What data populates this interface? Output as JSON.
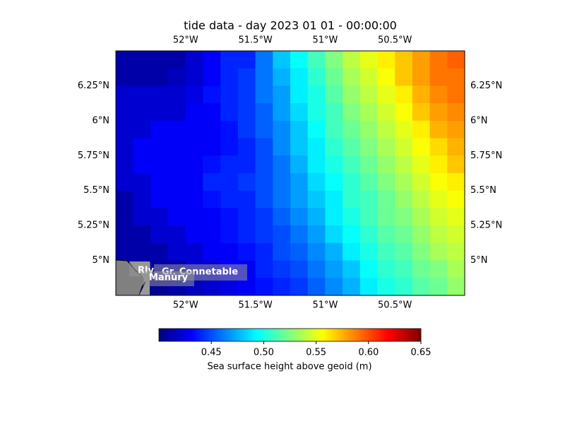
{
  "chart_data": {
    "type": "heatmap",
    "title": "tide data - day 2023 01 01 - 00:00:00",
    "xlim": [
      -52.5,
      -50.0
    ],
    "ylim": [
      4.75,
      6.5
    ],
    "xticks": [
      {
        "value": -52,
        "label": "52°W"
      },
      {
        "value": -51.5,
        "label": "51.5°W"
      },
      {
        "value": -51,
        "label": "51°W"
      },
      {
        "value": -50.5,
        "label": "50.5°W"
      }
    ],
    "yticks": [
      {
        "value": 5,
        "label": "5°N"
      },
      {
        "value": 5.25,
        "label": "5.25°N"
      },
      {
        "value": 5.5,
        "label": "5.5°N"
      },
      {
        "value": 5.75,
        "label": "5.75°N"
      },
      {
        "value": 6,
        "label": "6°N"
      },
      {
        "value": 6.25,
        "label": "6.25°N"
      }
    ],
    "colormap": "jet",
    "clim": [
      0.4,
      0.65
    ],
    "cticks": [
      {
        "value": 0.45,
        "label": "0.45"
      },
      {
        "value": 0.5,
        "label": "0.50"
      },
      {
        "value": 0.55,
        "label": "0.55"
      },
      {
        "value": 0.6,
        "label": "0.60"
      },
      {
        "value": 0.65,
        "label": "0.65"
      }
    ],
    "colorbar_label": "Sea surface height above geoid (m)",
    "annotations": [
      "Rly",
      "Gr. Connetable",
      "Manury"
    ],
    "values": [
      [
        0.41,
        0.41,
        0.41,
        0.41,
        0.42,
        0.43,
        0.44,
        0.44,
        0.46,
        0.48,
        0.495,
        0.51,
        0.525,
        0.54,
        0.55,
        0.56,
        0.57,
        0.58,
        0.59,
        0.595
      ],
      [
        0.41,
        0.41,
        0.41,
        0.415,
        0.42,
        0.43,
        0.44,
        0.445,
        0.46,
        0.475,
        0.49,
        0.505,
        0.52,
        0.535,
        0.545,
        0.555,
        0.57,
        0.58,
        0.59,
        0.59
      ],
      [
        0.42,
        0.42,
        0.42,
        0.42,
        0.425,
        0.435,
        0.44,
        0.445,
        0.46,
        0.47,
        0.49,
        0.5,
        0.515,
        0.53,
        0.54,
        0.55,
        0.56,
        0.575,
        0.585,
        0.59
      ],
      [
        0.42,
        0.42,
        0.42,
        0.42,
        0.43,
        0.43,
        0.44,
        0.445,
        0.455,
        0.47,
        0.485,
        0.5,
        0.51,
        0.525,
        0.535,
        0.545,
        0.555,
        0.57,
        0.58,
        0.585
      ],
      [
        0.42,
        0.42,
        0.43,
        0.43,
        0.43,
        0.43,
        0.435,
        0.445,
        0.455,
        0.465,
        0.48,
        0.495,
        0.51,
        0.52,
        0.53,
        0.54,
        0.55,
        0.56,
        0.575,
        0.58
      ],
      [
        0.42,
        0.43,
        0.43,
        0.43,
        0.43,
        0.43,
        0.435,
        0.44,
        0.45,
        0.465,
        0.48,
        0.49,
        0.505,
        0.515,
        0.525,
        0.535,
        0.545,
        0.555,
        0.565,
        0.575
      ],
      [
        0.42,
        0.43,
        0.43,
        0.43,
        0.43,
        0.435,
        0.44,
        0.44,
        0.45,
        0.46,
        0.475,
        0.49,
        0.5,
        0.51,
        0.52,
        0.53,
        0.54,
        0.55,
        0.56,
        0.57
      ],
      [
        0.42,
        0.42,
        0.43,
        0.43,
        0.43,
        0.44,
        0.44,
        0.445,
        0.45,
        0.46,
        0.47,
        0.485,
        0.495,
        0.505,
        0.515,
        0.525,
        0.535,
        0.545,
        0.555,
        0.56
      ],
      [
        0.41,
        0.42,
        0.43,
        0.43,
        0.43,
        0.435,
        0.44,
        0.44,
        0.45,
        0.46,
        0.47,
        0.48,
        0.49,
        0.505,
        0.51,
        0.52,
        0.53,
        0.54,
        0.55,
        0.555
      ],
      [
        0.41,
        0.42,
        0.42,
        0.43,
        0.43,
        0.43,
        0.435,
        0.44,
        0.445,
        0.455,
        0.465,
        0.475,
        0.49,
        0.5,
        0.51,
        0.52,
        0.525,
        0.535,
        0.545,
        0.55
      ],
      [
        0.41,
        0.41,
        0.42,
        0.42,
        0.43,
        0.43,
        0.435,
        0.44,
        0.445,
        0.45,
        0.46,
        0.47,
        0.485,
        0.495,
        0.505,
        0.515,
        0.52,
        0.53,
        0.54,
        0.545
      ],
      [
        0.41,
        0.41,
        0.41,
        0.42,
        0.42,
        0.43,
        0.43,
        0.435,
        0.44,
        0.45,
        0.455,
        0.465,
        0.475,
        0.49,
        0.5,
        0.51,
        0.515,
        0.525,
        0.535,
        0.54
      ],
      [
        0.405,
        0.405,
        0.41,
        0.41,
        0.42,
        0.42,
        0.43,
        0.43,
        0.44,
        0.445,
        0.45,
        0.46,
        0.47,
        0.48,
        0.495,
        0.505,
        0.51,
        0.52,
        0.525,
        0.535
      ],
      [
        0.4,
        0.4,
        0.405,
        0.41,
        0.415,
        0.42,
        0.425,
        0.43,
        0.435,
        0.44,
        0.445,
        0.455,
        0.465,
        0.475,
        0.49,
        0.5,
        0.505,
        0.515,
        0.52,
        0.53
      ]
    ]
  }
}
